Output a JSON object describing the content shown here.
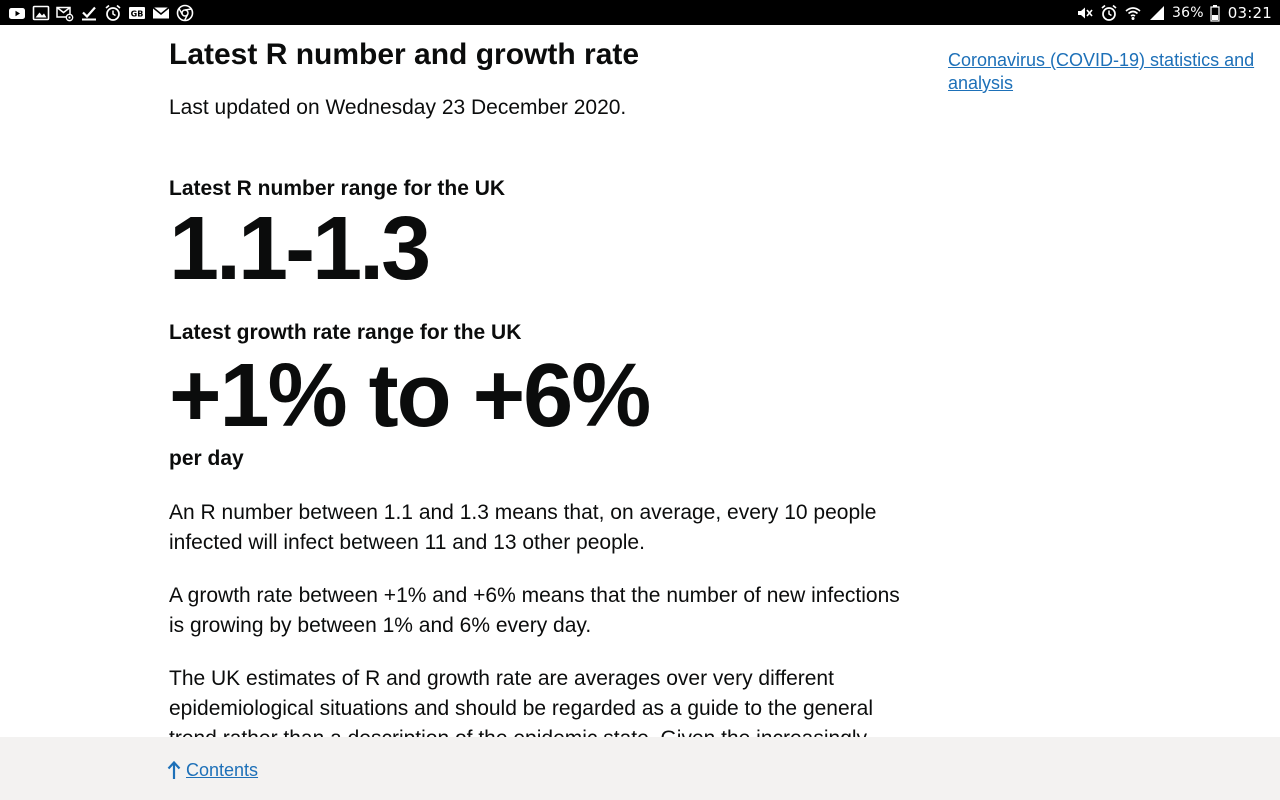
{
  "status_bar": {
    "notification_icons": [
      "youtube-icon",
      "gallery-icon",
      "email-at-icon",
      "checkmark-icon",
      "alarm-clock-icon",
      "gb-badge-icon",
      "mail-icon",
      "chrome-icon"
    ],
    "system_icons": [
      "mute-icon",
      "alarm-icon",
      "wifi-icon",
      "signal-icon"
    ],
    "battery": "36%",
    "time": "03:21"
  },
  "main": {
    "title": "Latest R number and growth rate",
    "updated": "Last updated on Wednesday 23 December 2020.",
    "r_label": "Latest R number range for the UK",
    "r_value": "1.1-1.3",
    "growth_label": "Latest growth rate range for the UK",
    "growth_value": "+1% to +6%",
    "growth_unit": "per day",
    "paragraphs": [
      "An R number between 1.1 and 1.3 means that, on average, every 10 people infected will infect between 11 and 13 other people.",
      "A growth rate between +1% and +6% means that the number of new infections is growing by between 1% and 6% every day.",
      "The UK estimates of R and growth rate are averages over very different epidemiological situations and should be regarded as a guide to the general trend rather than a description of the epidemic state. Given the increasingly"
    ]
  },
  "sidebar": {
    "link": "Coronavirus (COVID-19) statistics and analysis"
  },
  "footer": {
    "contents_label": "Contents"
  },
  "colors": {
    "link": "#1d70b8",
    "text": "#0b0c0c",
    "footer_bg": "#f3f2f1"
  }
}
